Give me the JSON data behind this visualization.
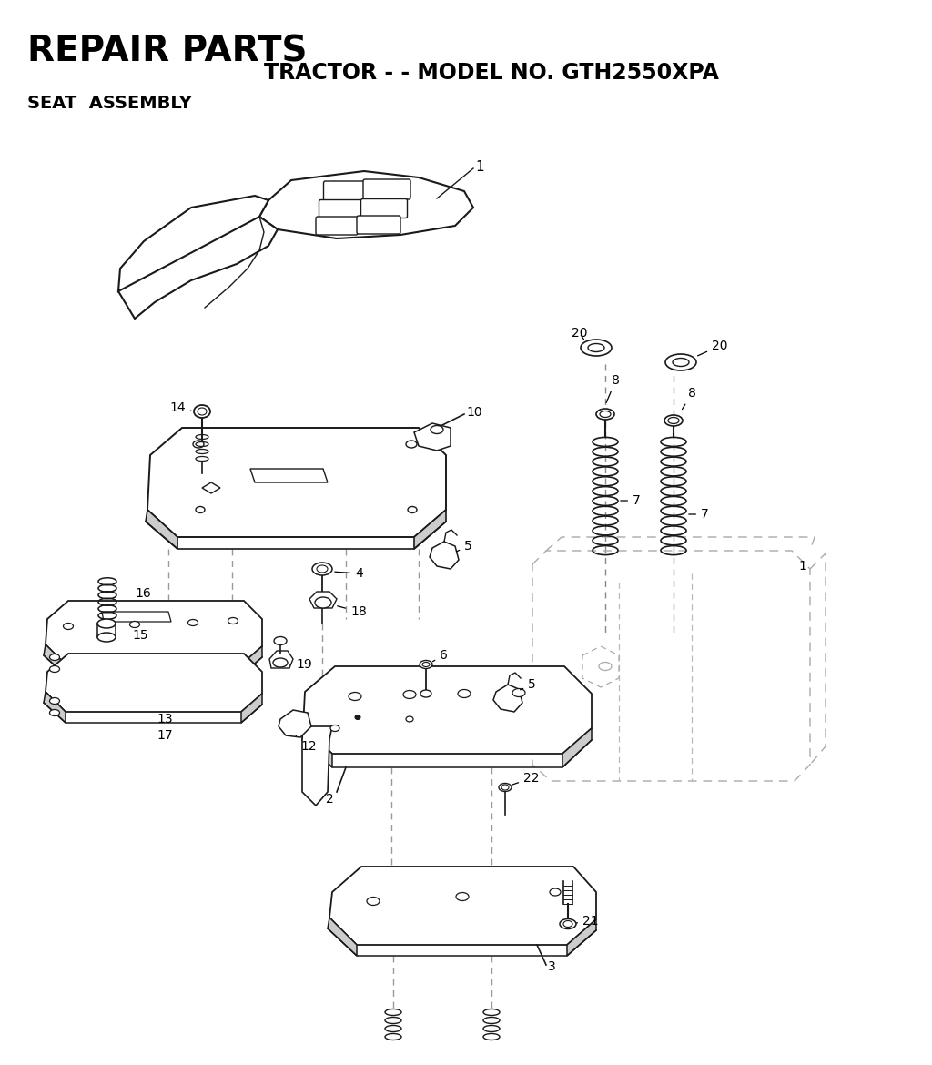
{
  "title1": "REPAIR PARTS",
  "title2": "TRACTOR - - MODEL NO. GTH2550XPA",
  "title3": "SEAT  ASSEMBLY",
  "bg_color": "#ffffff",
  "line_color": "#1a1a1a",
  "gray_color": "#888888",
  "light_gray": "#cccccc",
  "dashed_color": "#aaaaaa"
}
